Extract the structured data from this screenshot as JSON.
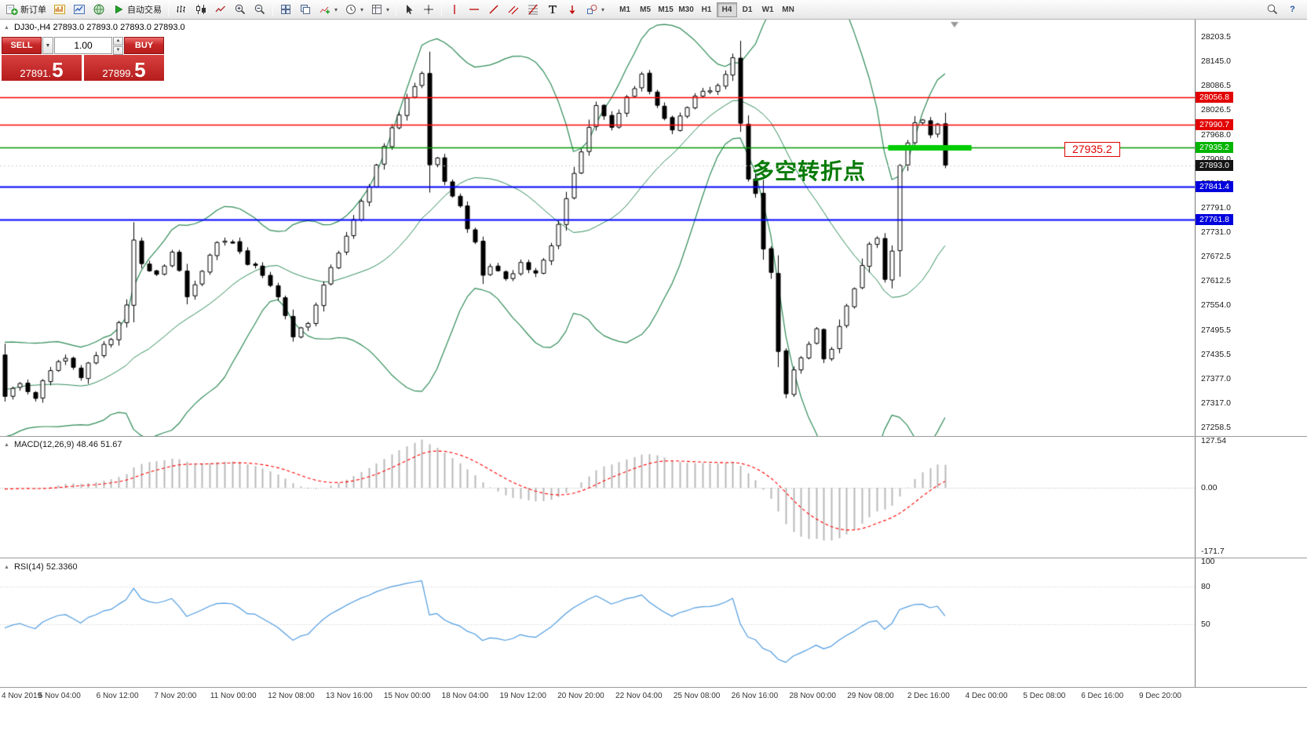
{
  "toolbar": {
    "new_order_label": "新订单",
    "auto_trading_label": "自动交易",
    "timeframes": [
      "M1",
      "M5",
      "M15",
      "M30",
      "H1",
      "H4",
      "D1",
      "W1",
      "MN"
    ],
    "active_timeframe": "H4"
  },
  "icons": {
    "dropdown_arrow": "▾",
    "collapse_arrow": "▲",
    "spinner_up": "▲",
    "spinner_down": "▼",
    "volume_dropdown_arrow": "▼",
    "help_glyph": "?"
  },
  "symbol_info": "DJ30-,H4  27893.0 27893.0 27893.0 27893.0",
  "order_panel": {
    "sell_label": "SELL",
    "buy_label": "BUY",
    "volume": "1.00",
    "sell_price_main": "27891.",
    "sell_price_pip": "5",
    "buy_price_main": "27899.",
    "buy_price_pip": "5"
  },
  "annotation_text": "多空转折点",
  "price_callout": "27935.2",
  "price_axis": {
    "labels": [
      "28203.5",
      "28145.0",
      "28086.5",
      "28026.5",
      "27968.0",
      "27908.0",
      "27849.5",
      "27791.0",
      "27731.0",
      "27672.5",
      "27612.5",
      "27554.0",
      "27495.5",
      "27435.5",
      "27377.0",
      "27317.0",
      "27258.5"
    ],
    "tags": [
      {
        "text": "28056.8",
        "color": "#e20000"
      },
      {
        "text": "27990.7",
        "color": "#e20000"
      },
      {
        "text": "27935.2",
        "color": "#00b400"
      },
      {
        "text": "27893.0",
        "color": "#141414"
      },
      {
        "text": "27841.4",
        "color": "#0000dc"
      },
      {
        "text": "27761.8",
        "color": "#0000dc"
      }
    ]
  },
  "time_axis": [
    "4 Nov 2019",
    "5 Nov 04:00",
    "6 Nov 12:00",
    "7 Nov 20:00",
    "11 Nov 00:00",
    "12 Nov 08:00",
    "13 Nov 16:00",
    "15 Nov 00:00",
    "18 Nov 04:00",
    "19 Nov 12:00",
    "20 Nov 20:00",
    "22 Nov 04:00",
    "25 Nov 08:00",
    "26 Nov 16:00",
    "28 Nov 00:00",
    "29 Nov 08:00",
    "2 Dec 16:00",
    "4 Dec 00:00",
    "5 Dec 08:00",
    "6 Dec 16:00",
    "9 Dec 20:00"
  ],
  "macd_panel": {
    "label": "MACD(12,26,9) 48.46 51.67",
    "scale": [
      "127.54",
      "0.00",
      "-171.7"
    ]
  },
  "rsi_panel": {
    "label": "RSI(14) 52.3360",
    "scale": [
      "100",
      "80",
      "50"
    ]
  },
  "chart_data": {
    "type": "candlestick",
    "symbol": "DJ30-",
    "timeframe": "H4",
    "bar_count": 125,
    "visible_price_range": [
      27258.5,
      28203.5
    ],
    "current_price": 27893.0,
    "close_waypoints": [
      [
        0,
        27340
      ],
      [
        2,
        27372
      ],
      [
        4,
        27332
      ],
      [
        6,
        27398
      ],
      [
        8,
        27430
      ],
      [
        10,
        27382
      ],
      [
        12,
        27440
      ],
      [
        14,
        27478
      ],
      [
        16,
        27556
      ],
      [
        17,
        27718
      ],
      [
        18,
        27660
      ],
      [
        20,
        27622
      ],
      [
        22,
        27688
      ],
      [
        24,
        27580
      ],
      [
        26,
        27640
      ],
      [
        28,
        27698
      ],
      [
        30,
        27712
      ],
      [
        32,
        27660
      ],
      [
        34,
        27632
      ],
      [
        36,
        27580
      ],
      [
        38,
        27472
      ],
      [
        40,
        27512
      ],
      [
        42,
        27600
      ],
      [
        44,
        27678
      ],
      [
        46,
        27758
      ],
      [
        48,
        27840
      ],
      [
        50,
        27938
      ],
      [
        52,
        28018
      ],
      [
        54,
        28088
      ],
      [
        55,
        28118
      ],
      [
        56,
        27892
      ],
      [
        57,
        27912
      ],
      [
        58,
        27860
      ],
      [
        60,
        27790
      ],
      [
        62,
        27700
      ],
      [
        63,
        27622
      ],
      [
        64,
        27650
      ],
      [
        66,
        27612
      ],
      [
        68,
        27660
      ],
      [
        70,
        27632
      ],
      [
        72,
        27700
      ],
      [
        74,
        27810
      ],
      [
        76,
        27928
      ],
      [
        78,
        28030
      ],
      [
        80,
        27992
      ],
      [
        82,
        28058
      ],
      [
        84,
        28108
      ],
      [
        86,
        28032
      ],
      [
        88,
        27972
      ],
      [
        90,
        28040
      ],
      [
        92,
        28068
      ],
      [
        94,
        28092
      ],
      [
        96,
        28148
      ],
      [
        97,
        28000
      ],
      [
        98,
        27862
      ],
      [
        99,
        27830
      ],
      [
        100,
        27692
      ],
      [
        101,
        27640
      ],
      [
        102,
        27442
      ],
      [
        103,
        27332
      ],
      [
        104,
        27390
      ],
      [
        105,
        27420
      ],
      [
        106,
        27458
      ],
      [
        107,
        27492
      ],
      [
        108,
        27432
      ],
      [
        109,
        27452
      ],
      [
        110,
        27500
      ],
      [
        111,
        27548
      ],
      [
        112,
        27600
      ],
      [
        113,
        27650
      ],
      [
        114,
        27700
      ],
      [
        115,
        27712
      ],
      [
        116,
        27622
      ],
      [
        117,
        27680
      ],
      [
        118,
        27888
      ],
      [
        119,
        27948
      ],
      [
        120,
        27988
      ],
      [
        121,
        28002
      ],
      [
        122,
        27972
      ],
      [
        123,
        27990
      ],
      [
        124,
        27893
      ]
    ],
    "horizontal_lines": [
      {
        "price": 28056.8,
        "color": "#ff0000"
      },
      {
        "price": 27990.7,
        "color": "#ff0000"
      },
      {
        "price": 27935.2,
        "color": "#009600",
        "highlight_segment": true,
        "segment_bars": [
          116.5,
          127.5
        ]
      },
      {
        "price": 27841.4,
        "color": "#0000ff"
      },
      {
        "price": 27761.8,
        "color": "#0000ff"
      }
    ],
    "overlays": [
      {
        "name": "Bollinger Bands",
        "period": 20,
        "deviation": 2,
        "color": "#2e8b57"
      }
    ],
    "indicators": [
      {
        "name": "MACD",
        "params": [
          12,
          26,
          9
        ],
        "values_label": "48.46 51.67",
        "histogram_color": "#b8b8b8",
        "signal_color": "#ff0000",
        "range": [
          -171.7,
          127.54
        ]
      },
      {
        "name": "RSI",
        "params": [
          14
        ],
        "value": 52.336,
        "color": "#4f9bdf",
        "levels": [
          80,
          50
        ]
      }
    ]
  }
}
